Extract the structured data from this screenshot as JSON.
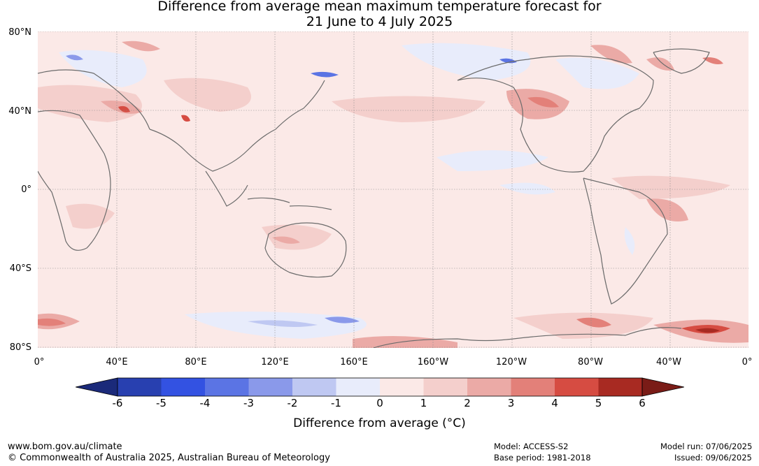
{
  "title_line1": "Difference from average mean maximum temperature forecast for",
  "title_line2": "21 June to 4 July 2025",
  "lat_labels": [
    "80°N",
    "40°N",
    "0°",
    "40°S",
    "80°S"
  ],
  "lon_labels": [
    "0°",
    "40°E",
    "80°E",
    "120°E",
    "160°E",
    "160°W",
    "120°W",
    "80°W",
    "40°W",
    "0°"
  ],
  "colorbar": {
    "ticks": [
      "-6",
      "-5",
      "-4",
      "-3",
      "-2",
      "-1",
      "0",
      "1",
      "2",
      "3",
      "4",
      "5",
      "6"
    ],
    "colors": [
      "#1b2a7a",
      "#2840b0",
      "#3352e2",
      "#5b74e4",
      "#8a99ea",
      "#bfc8f2",
      "#e8ecfb",
      "#fbe9e7",
      "#f4cfcc",
      "#ebaaa6",
      "#e38079",
      "#d64c42",
      "#a82a22",
      "#7a1c17"
    ],
    "label": "Difference from average (°C)"
  },
  "footer": {
    "website": "www.bom.gov.au/climate",
    "copyright": "© Commonwealth of Australia 2025, Australian Bureau of Meteorology",
    "model": "Model: ACCESS-S2",
    "base_period": "Base period: 1981-2018",
    "model_run": "Model run: 07/06/2025",
    "issued": "Issued: 09/06/2025"
  }
}
